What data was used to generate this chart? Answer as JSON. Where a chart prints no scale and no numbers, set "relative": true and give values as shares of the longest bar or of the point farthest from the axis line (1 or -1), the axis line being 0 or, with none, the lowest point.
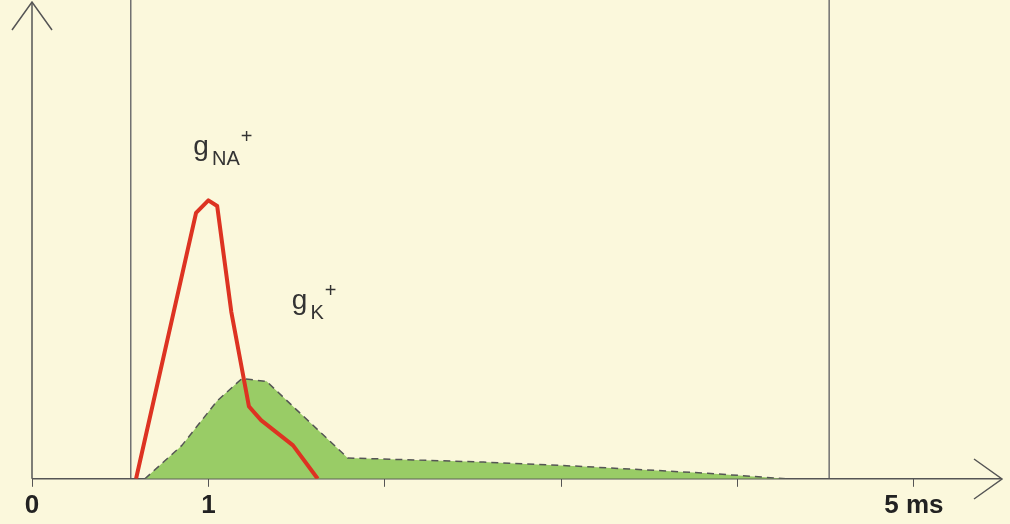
{
  "chart_data": {
    "type": "line",
    "relative": true,
    "xlim": [
      0,
      5.5
    ],
    "xticks": [
      0,
      1,
      {
        "value": 2,
        "label": null
      },
      {
        "value": 3,
        "label": null
      },
      {
        "value": 4,
        "label": null
      },
      {
        "value": 5,
        "label": "5 ms"
      }
    ],
    "tick_labels": "x",
    "grid": false,
    "legend": false,
    "marker": "none",
    "ref_lines": [
      {
        "axis": "x",
        "value": 0.56,
        "color": "#707070"
      },
      {
        "axis": "x",
        "value": 4.52,
        "color": "#707070"
      }
    ],
    "series": [
      {
        "name": "g$_{NA}$$^{+}$",
        "type": "line",
        "color": "#dd3322",
        "x": [
          0.59,
          0.93,
          1.0,
          1.05,
          1.13,
          1.23,
          1.3,
          1.48,
          1.62
        ],
        "values": [
          0,
          0.955,
          1,
          0.98,
          0.6,
          0.26,
          0.21,
          0.12,
          0
        ]
      },
      {
        "name": "g$_{K}$$^{+}$",
        "type": "area",
        "color": "#99cc66",
        "line_style": "dashed",
        "x": [
          0.64,
          0.85,
          1.05,
          1.19,
          1.33,
          1.53,
          1.79,
          2.56,
          3.1,
          3.83,
          4.28
        ],
        "values": [
          0,
          0.12,
          0.28,
          0.36,
          0.35,
          0.23,
          0.075,
          0.06,
          0.045,
          0.02,
          0
        ]
      }
    ]
  }
}
